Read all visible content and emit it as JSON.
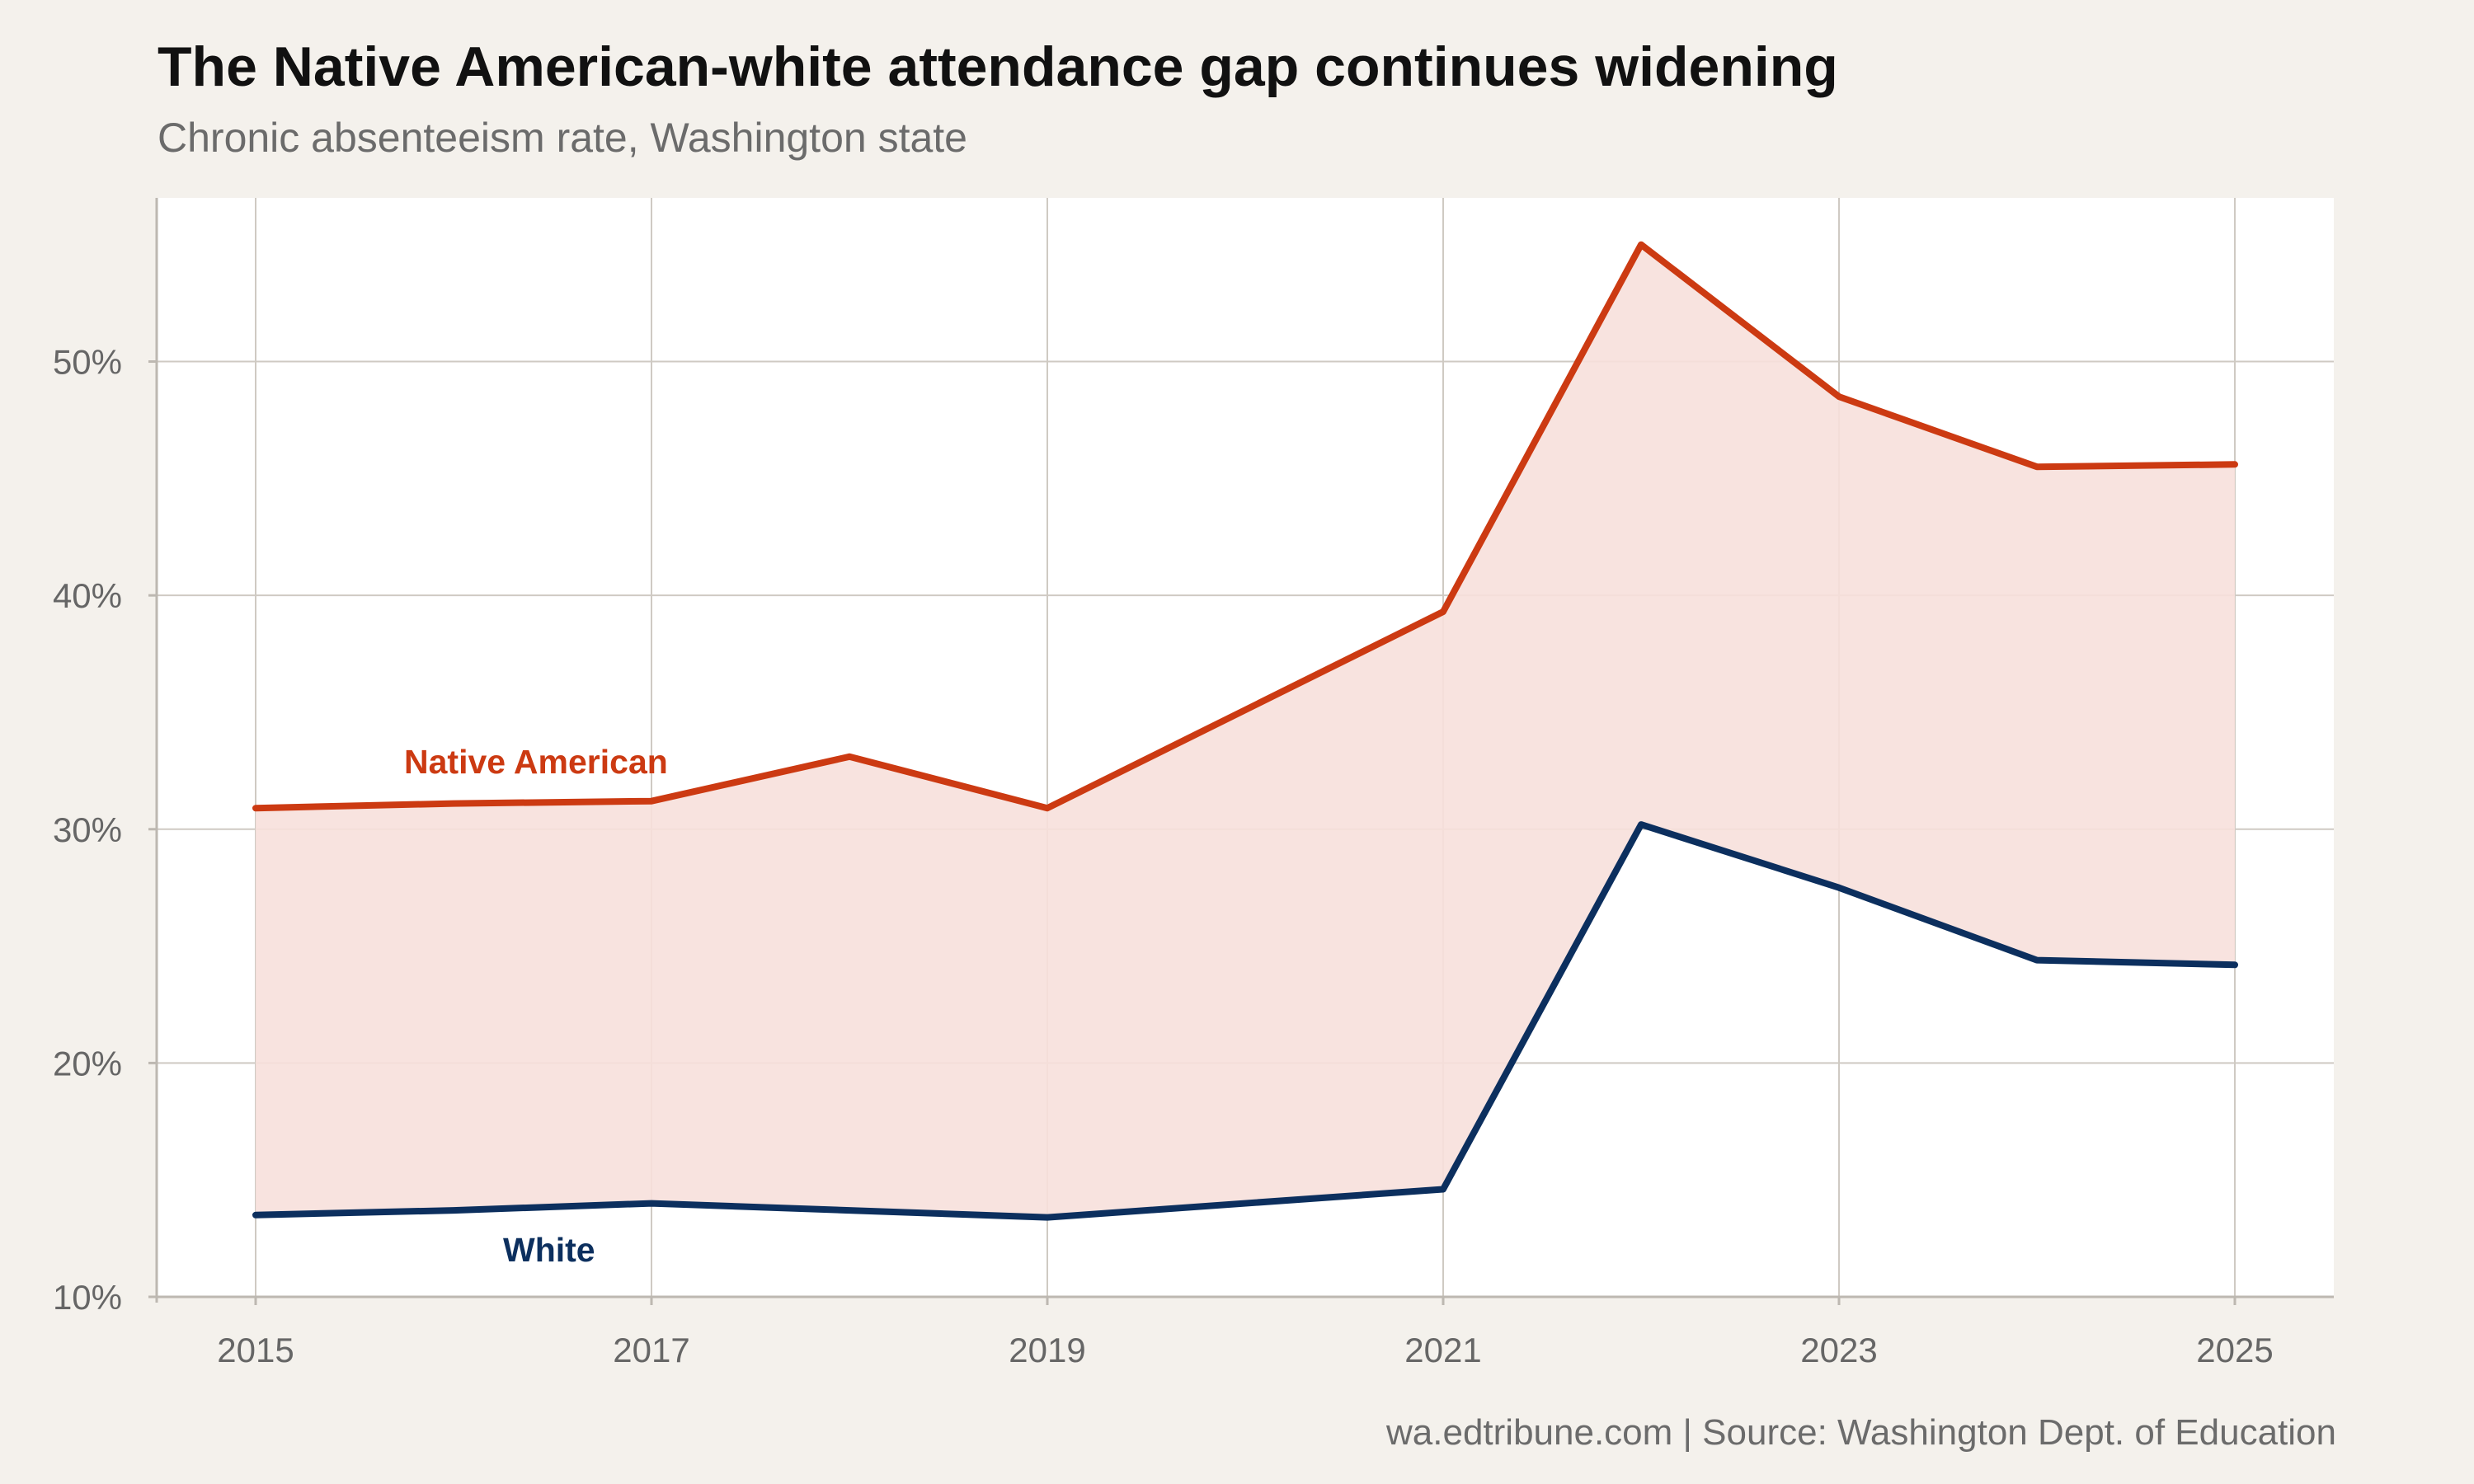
{
  "chart_data": {
    "type": "line",
    "title": "The Native American-white attendance gap continues widening",
    "subtitle": "Chronic absenteeism rate, Washington state",
    "caption": "wa.edtribune.com | Source: Washington Dept. of Education",
    "xlabel": "",
    "ylabel": "",
    "x": [
      2015,
      2016,
      2017,
      2018,
      2019,
      2020,
      2021,
      2022,
      2023,
      2024,
      2025
    ],
    "x_ticks": [
      "2015",
      "2017",
      "2019",
      "2021",
      "2023",
      "2025"
    ],
    "y_ticks": [
      "10%",
      "20%",
      "30%",
      "40%",
      "50%"
    ],
    "xlim": [
      2014.5,
      2025.5
    ],
    "ylim": [
      10,
      57
    ],
    "grid": true,
    "shaded_gap": true,
    "series": [
      {
        "name": "Native American",
        "color": "#cc3a12",
        "x": [
          2015,
          2016,
          2017,
          2018,
          2019,
          2021,
          2022,
          2023,
          2024,
          2025
        ],
        "values": [
          30.9,
          31.1,
          31.2,
          33.1,
          30.9,
          39.3,
          55.0,
          48.5,
          45.5,
          45.6
        ]
      },
      {
        "name": "White",
        "color": "#0c2f5e",
        "x": [
          2015,
          2016,
          2017,
          2018,
          2019,
          2021,
          2022,
          2023,
          2024,
          2025
        ],
        "values": [
          13.5,
          13.7,
          14.0,
          13.7,
          13.4,
          14.6,
          30.2,
          27.5,
          24.4,
          24.2
        ]
      }
    ],
    "gap_fill_color": "#f7e0db"
  }
}
